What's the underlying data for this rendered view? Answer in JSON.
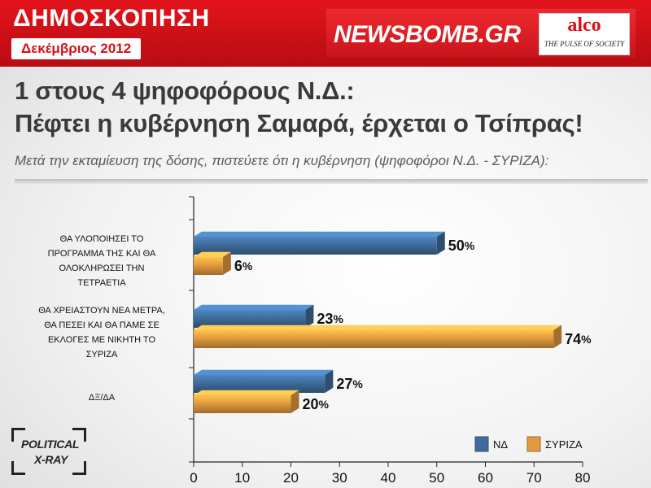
{
  "header": {
    "title": "ΔΗΜΟΣΚΟΠΗΣΗ",
    "date": "Δεκέμβριος 2012",
    "site": "NEWSBOMB.GR",
    "pollster": "alco",
    "pollster_tagline": "THE PULSE OF SOCIETY"
  },
  "headline": {
    "line1": "1 στους 4 ψηφοφόρους Ν.Δ.:",
    "line2": "Πέφτει η κυβέρνηση Σαμαρά, έρχεται ο Τσίπρας!"
  },
  "subtitle": "Μετά την εκταμίευση της δόσης, πιστεύετε ότι η κυβέρνηση (ψηφοφόροι Ν.Δ. - ΣΥΡΙΖΑ):",
  "badge": {
    "line1": "POLITICAL",
    "line2": "X-RAY"
  },
  "colors": {
    "nd": "#3f6c9c",
    "syriza": "#e29a3e",
    "brand": "#d3121a"
  },
  "chart_data": {
    "type": "bar",
    "orientation": "horizontal",
    "categories": [
      [
        "ΘΑ ΥΛΟΠΟΙΗΣΕΙ ΤΟ",
        "ΠΡΟΓΡΑΜΜΑ ΤΗΣ ΚΑΙ ΘΑ",
        "ΟΛΟΚΛΗΡΩΣΕΙ ΤΗΝ",
        "ΤΕΤΡΑΕΤΙΑ"
      ],
      [
        "ΘΑ ΧΡΕΙΑΣΤΟΥΝ ΝΕΑ ΜΕΤΡΑ,",
        "ΘΑ ΠΕΣΕΙ ΚΑΙ ΘΑ ΠΑΜΕ ΣΕ",
        "ΕΚΛΟΓΕΣ ΜΕ ΝΙΚΗΤΗ ΤΟ",
        "ΣΥΡΙΖΑ"
      ],
      [
        "ΔΞ/ΔΑ"
      ]
    ],
    "series": [
      {
        "name": "ΝΔ",
        "values": [
          50,
          23,
          27
        ]
      },
      {
        "name": "ΣΥΡΙΖΑ",
        "values": [
          6,
          74,
          20
        ]
      }
    ],
    "xlim": [
      0,
      80
    ],
    "xticks": [
      0,
      10,
      20,
      30,
      40,
      50,
      60,
      70,
      80
    ],
    "value_suffix": "%",
    "legend_position": "bottom-right",
    "grid": false
  }
}
